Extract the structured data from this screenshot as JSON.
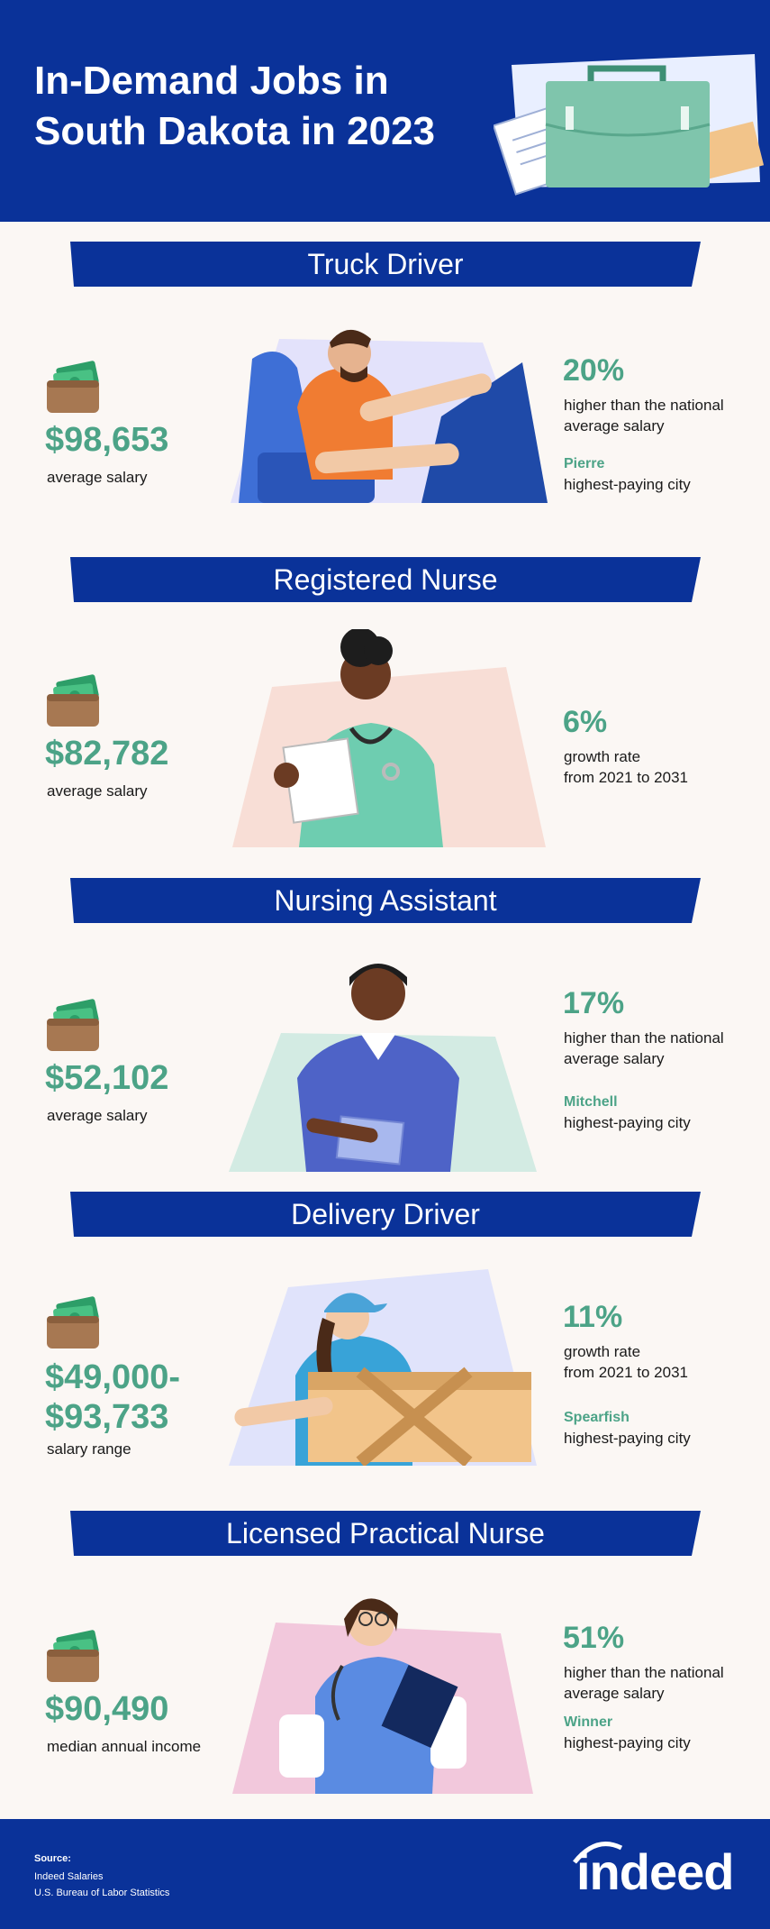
{
  "header": {
    "title_line1": "In-Demand Jobs in",
    "title_line2": "South Dakota in 2023"
  },
  "jobs": [
    {
      "title": "Truck Driver",
      "salary": "$98,653",
      "salary_note": "average salary",
      "stat": "20%",
      "stat_note1": "higher than the national",
      "stat_note2": "average salary",
      "city": "Pierre",
      "city_note": "highest-paying city"
    },
    {
      "title": "Registered Nurse",
      "salary": "$82,782",
      "salary_note": "average salary",
      "stat": "6%",
      "stat_note1": "growth rate",
      "stat_note2": "from 2021 to 2031"
    },
    {
      "title": "Nursing Assistant",
      "salary": "$52,102",
      "salary_note": "average salary",
      "stat": "17%",
      "stat_note1": "higher than the national",
      "stat_note2": "average salary",
      "city": "Mitchell",
      "city_note": "highest-paying city"
    },
    {
      "title": "Delivery Driver",
      "salary_line1": "$49,000-",
      "salary_line2": "$93,733",
      "salary_note": "salary range",
      "stat": "11%",
      "stat_note1": "growth rate",
      "stat_note2": "from 2021 to 2031",
      "city": "Spearfish",
      "city_note": "highest-paying city"
    },
    {
      "title": "Licensed Practical Nurse",
      "salary": "$90,490",
      "salary_note": "median annual income",
      "stat": "51%",
      "stat_note1": "higher than the national",
      "stat_note2": "average salary",
      "city": "Winner",
      "city_note": "highest-paying city"
    }
  ],
  "footer": {
    "source_label": "Source:",
    "source1": "Indeed Salaries",
    "source2": "U.S. Bureau of Labor Statistics",
    "logo": "indeed"
  },
  "colors": {
    "brand_blue": "#0a3299",
    "accent_green": "#4ca387",
    "background": "#fbf7f4"
  },
  "icons": [
    "briefcase-icon",
    "wallet-icon"
  ]
}
